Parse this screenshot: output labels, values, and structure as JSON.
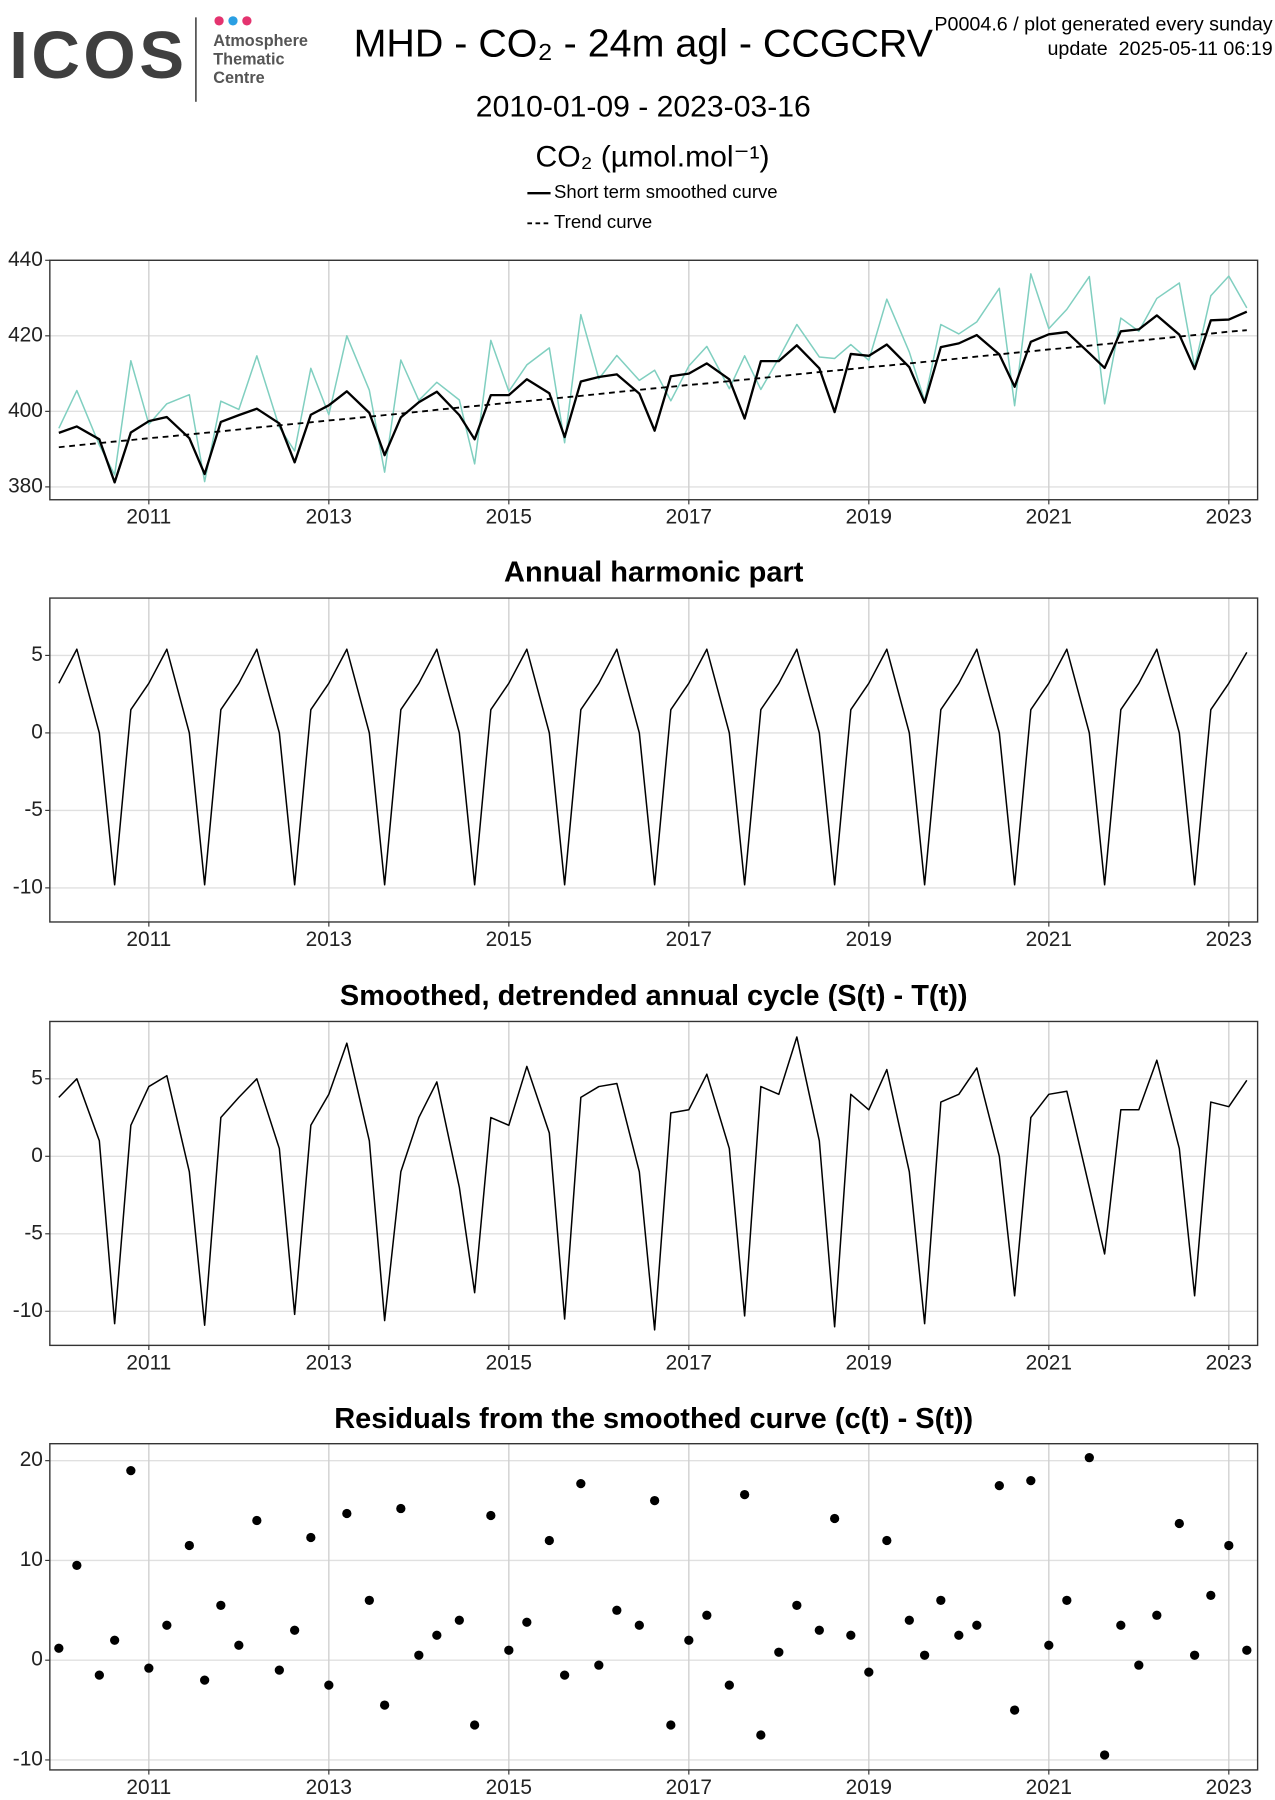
{
  "header": {
    "logo": "ICOS",
    "logo_lines": [
      "Atmosphere",
      "Thematic",
      "Centre"
    ],
    "title": "MHD - CO₂ - 24m agl - CCGCRV",
    "subtitle": "2010-01-09 - 2023-03-16",
    "note": "P0004.6 / plot generated every sunday",
    "update": "update  2025-05-11 06:19"
  },
  "chart_data": [
    {
      "type": "line",
      "ylabel": "CO₂ (µmol.mol⁻¹)",
      "x": [
        2010,
        2010.2,
        2010.45,
        2010.62,
        2010.8,
        2011,
        2011.2,
        2011.45,
        2011.62,
        2011.8,
        2012,
        2012.2,
        2012.45,
        2012.62,
        2012.8,
        2013,
        2013.2,
        2013.45,
        2013.62,
        2013.8,
        2014,
        2014.2,
        2014.45,
        2014.62,
        2014.8,
        2015,
        2015.2,
        2015.45,
        2015.62,
        2015.8,
        2016,
        2016.2,
        2016.45,
        2016.62,
        2016.8,
        2017,
        2017.2,
        2017.45,
        2017.62,
        2017.8,
        2018,
        2018.2,
        2018.45,
        2018.62,
        2018.8,
        2019,
        2019.2,
        2019.45,
        2019.62,
        2019.8,
        2020,
        2020.2,
        2020.45,
        2020.62,
        2020.8,
        2021,
        2021.2,
        2021.45,
        2021.62,
        2021.8,
        2022,
        2022.2,
        2022.45,
        2022.62,
        2022.8,
        2023,
        2023.2
      ],
      "series": [
        {
          "color": "#80cfc0",
          "values": [
            395.5,
            405.5,
            391.1,
            383.2,
            413.4,
            396.6,
            402.0,
            404.4,
            381.4,
            402.7,
            400.5,
            414.7,
            395.8,
            389.5,
            411.4,
            399.1,
            420.0,
            405.6,
            383.9,
            413.6,
            402.9,
            407.7,
            403.0,
            386.1,
            418.8,
            405.3,
            412.3,
            416.8,
            391.7,
            425.6,
            408.6,
            414.8,
            408.2,
            410.9,
            402.8,
            412.0,
            417.2,
            406.0,
            414.7,
            405.8,
            414.1,
            423.0,
            414.4,
            414.0,
            417.7,
            413.5,
            429.7,
            415.7,
            402.8,
            423.0,
            420.5,
            423.7,
            432.6,
            401.5,
            436.4,
            421.9,
            427.0,
            435.7,
            402.0,
            424.7,
            421.2,
            429.9,
            434.0,
            411.7,
            430.6,
            435.8,
            427.4
          ]
        },
        {
          "name": "Short term smoothed curve",
          "color": "#000000",
          "values": [
            394.3,
            396.0,
            392.6,
            381.2,
            394.4,
            397.4,
            398.5,
            392.9,
            383.4,
            397.2,
            399.0,
            400.7,
            396.8,
            386.5,
            399.1,
            401.6,
            405.3,
            399.6,
            388.4,
            398.4,
            402.4,
            405.2,
            399.0,
            392.6,
            404.3,
            404.3,
            408.5,
            404.8,
            393.2,
            407.9,
            409.1,
            409.8,
            404.7,
            394.9,
            409.3,
            410.0,
            412.7,
            408.5,
            398.1,
            413.3,
            413.3,
            417.5,
            411.4,
            399.8,
            415.2,
            414.7,
            417.7,
            411.7,
            402.3,
            417.0,
            418.0,
            420.2,
            415.1,
            406.5,
            418.4,
            420.4,
            421.0,
            415.4,
            411.5,
            421.2,
            421.7,
            425.4,
            420.3,
            411.2,
            424.1,
            424.3,
            426.4
          ]
        },
        {
          "name": "Trend curve",
          "color": "#000000",
          "dashed": true,
          "values": [
            390.5,
            391.0,
            391.6,
            392.0,
            392.4,
            392.9,
            393.3,
            393.9,
            394.3,
            394.7,
            395.2,
            395.7,
            396.3,
            396.7,
            397.1,
            397.6,
            398.0,
            398.6,
            399.0,
            399.4,
            399.9,
            400.4,
            401.0,
            401.4,
            401.8,
            402.3,
            402.7,
            403.3,
            403.7,
            404.1,
            404.6,
            405.1,
            405.7,
            406.1,
            406.5,
            407.0,
            407.4,
            408.0,
            408.4,
            408.8,
            409.3,
            409.8,
            410.4,
            410.8,
            411.2,
            411.7,
            412.1,
            412.7,
            413.1,
            413.5,
            414.0,
            414.5,
            415.1,
            415.5,
            415.9,
            416.4,
            416.8,
            417.4,
            417.8,
            418.2,
            418.7,
            419.2,
            419.8,
            420.2,
            420.6,
            421.1,
            421.5
          ]
        }
      ],
      "xlim": [
        2009.9,
        2023.32
      ],
      "xticks": [
        2011,
        2013,
        2015,
        2017,
        2019,
        2021,
        2023
      ],
      "ylim": [
        376.6,
        440
      ],
      "yticks": [
        380,
        400,
        420,
        440
      ],
      "grid": true
    },
    {
      "type": "line",
      "title": "Annual harmonic part",
      "x": [
        2010,
        2010.2,
        2010.45,
        2010.62,
        2010.8,
        2011,
        2011.2,
        2011.45,
        2011.62,
        2011.8,
        2012,
        2012.2,
        2012.45,
        2012.62,
        2012.8,
        2013,
        2013.2,
        2013.45,
        2013.62,
        2013.8,
        2014,
        2014.2,
        2014.45,
        2014.62,
        2014.8,
        2015,
        2015.2,
        2015.45,
        2015.62,
        2015.8,
        2016,
        2016.2,
        2016.45,
        2016.62,
        2016.8,
        2017,
        2017.2,
        2017.45,
        2017.62,
        2017.8,
        2018,
        2018.2,
        2018.45,
        2018.62,
        2018.8,
        2019,
        2019.2,
        2019.45,
        2019.62,
        2019.8,
        2020,
        2020.2,
        2020.45,
        2020.62,
        2020.8,
        2021,
        2021.2,
        2021.45,
        2021.62,
        2021.8,
        2022,
        2022.2,
        2022.45,
        2022.62,
        2022.8,
        2023,
        2023.2
      ],
      "series": [
        {
          "color": "#000000",
          "values": [
            3.2,
            5.4,
            0.0,
            -9.8,
            1.5,
            3.2,
            5.4,
            0.0,
            -9.8,
            1.5,
            3.2,
            5.4,
            0.0,
            -9.8,
            1.5,
            3.2,
            5.4,
            0.0,
            -9.8,
            1.5,
            3.2,
            5.4,
            0.0,
            -9.8,
            1.5,
            3.2,
            5.4,
            0.0,
            -9.8,
            1.5,
            3.2,
            5.4,
            0.0,
            -9.8,
            1.5,
            3.2,
            5.4,
            0.0,
            -9.8,
            1.5,
            3.2,
            5.4,
            0.0,
            -9.8,
            1.5,
            3.2,
            5.4,
            0.0,
            -9.8,
            1.5,
            3.2,
            5.4,
            0.0,
            -9.8,
            1.5,
            3.2,
            5.4,
            0.0,
            -9.8,
            1.5,
            3.2,
            5.4,
            0.0,
            -9.8,
            1.5,
            3.2,
            5.2
          ]
        }
      ],
      "xlim": [
        2009.9,
        2023.32
      ],
      "xticks": [
        2011,
        2013,
        2015,
        2017,
        2019,
        2021,
        2023
      ],
      "ylim": [
        -12.2,
        8.7
      ],
      "yticks": [
        -10,
        -5,
        0,
        5
      ],
      "grid": true
    },
    {
      "type": "line",
      "title": "Smoothed, detrended annual cycle (S(t) - T(t))",
      "x": [
        2010,
        2010.2,
        2010.45,
        2010.62,
        2010.8,
        2011,
        2011.2,
        2011.45,
        2011.62,
        2011.8,
        2012,
        2012.2,
        2012.45,
        2012.62,
        2012.8,
        2013,
        2013.2,
        2013.45,
        2013.62,
        2013.8,
        2014,
        2014.2,
        2014.45,
        2014.62,
        2014.8,
        2015,
        2015.2,
        2015.45,
        2015.62,
        2015.8,
        2016,
        2016.2,
        2016.45,
        2016.62,
        2016.8,
        2017,
        2017.2,
        2017.45,
        2017.62,
        2017.8,
        2018,
        2018.2,
        2018.45,
        2018.62,
        2018.8,
        2019,
        2019.2,
        2019.45,
        2019.62,
        2019.8,
        2020,
        2020.2,
        2020.45,
        2020.62,
        2020.8,
        2021,
        2021.2,
        2021.45,
        2021.62,
        2021.8,
        2022,
        2022.2,
        2022.45,
        2022.62,
        2022.8,
        2023,
        2023.2
      ],
      "series": [
        {
          "color": "#000000",
          "values": [
            3.8,
            5.0,
            1.0,
            -10.8,
            2.0,
            4.5,
            5.2,
            -1.0,
            -10.9,
            2.5,
            3.8,
            5.0,
            0.5,
            -10.2,
            2.0,
            4.0,
            7.3,
            1.0,
            -10.6,
            -1.0,
            2.5,
            4.8,
            -2.0,
            -8.8,
            2.5,
            2.0,
            5.8,
            1.5,
            -10.5,
            3.8,
            4.5,
            4.7,
            -1.0,
            -11.2,
            2.8,
            3.0,
            5.3,
            0.5,
            -10.3,
            4.5,
            4.0,
            7.7,
            1.0,
            -11.0,
            4.0,
            3.0,
            5.6,
            -1.0,
            -10.8,
            3.5,
            4.0,
            5.7,
            0.0,
            -9.0,
            2.5,
            4.0,
            4.2,
            -2.0,
            -6.3,
            3.0,
            3.0,
            6.2,
            0.5,
            -9.0,
            3.5,
            3.2,
            4.9
          ]
        }
      ],
      "xlim": [
        2009.9,
        2023.32
      ],
      "xticks": [
        2011,
        2013,
        2015,
        2017,
        2019,
        2021,
        2023
      ],
      "ylim": [
        -12.2,
        8.7
      ],
      "yticks": [
        -10,
        -5,
        0,
        5
      ],
      "grid": true
    },
    {
      "type": "scatter",
      "title": "Residuals from the smoothed curve (c(t) - S(t))",
      "color": "#000000",
      "x": [
        2010,
        2010.2,
        2010.45,
        2010.62,
        2010.8,
        2011,
        2011.2,
        2011.45,
        2011.62,
        2011.8,
        2012,
        2012.2,
        2012.45,
        2012.62,
        2012.8,
        2013,
        2013.2,
        2013.45,
        2013.62,
        2013.8,
        2014,
        2014.2,
        2014.45,
        2014.62,
        2014.8,
        2015,
        2015.2,
        2015.45,
        2015.62,
        2015.8,
        2016,
        2016.2,
        2016.45,
        2016.62,
        2016.8,
        2017,
        2017.2,
        2017.45,
        2017.62,
        2017.8,
        2018,
        2018.2,
        2018.45,
        2018.62,
        2018.8,
        2019,
        2019.2,
        2019.45,
        2019.62,
        2019.8,
        2020,
        2020.2,
        2020.45,
        2020.62,
        2020.8,
        2021,
        2021.2,
        2021.45,
        2021.62,
        2021.8,
        2022,
        2022.2,
        2022.45,
        2022.62,
        2022.8,
        2023,
        2023.2
      ],
      "values": [
        1.2,
        9.5,
        -1.5,
        2.0,
        19.0,
        -0.8,
        3.5,
        11.5,
        -2.0,
        5.5,
        1.5,
        14.0,
        -1.0,
        3.0,
        12.3,
        -2.5,
        14.7,
        6.0,
        -4.5,
        15.2,
        0.5,
        2.5,
        4.0,
        -6.5,
        14.5,
        1.0,
        3.8,
        12.0,
        -1.5,
        17.7,
        -0.5,
        5.0,
        3.5,
        16.0,
        -6.5,
        2.0,
        4.5,
        -2.5,
        16.6,
        -7.5,
        0.8,
        5.5,
        3.0,
        14.2,
        2.5,
        -1.2,
        12.0,
        4.0,
        0.5,
        6.0,
        2.5,
        3.5,
        17.5,
        -5.0,
        18.0,
        1.5,
        6.0,
        20.3,
        -9.5,
        3.5,
        -0.5,
        4.5,
        13.7,
        0.5,
        6.5,
        11.5,
        1.0
      ],
      "xlim": [
        2009.9,
        2023.32
      ],
      "xticks": [
        2011,
        2013,
        2015,
        2017,
        2019,
        2021,
        2023
      ],
      "ylim": [
        -11.0,
        21.7
      ],
      "yticks": [
        -10,
        0,
        10,
        20
      ],
      "grid": true
    }
  ]
}
